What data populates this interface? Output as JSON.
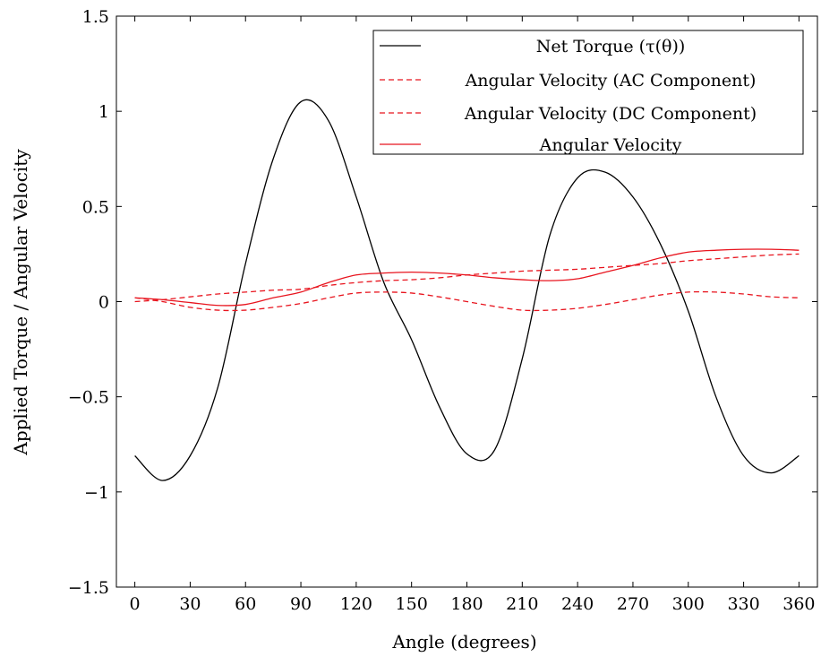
{
  "chart_data": {
    "type": "line",
    "xlabel": "Angle (degrees)",
    "ylabel": "Applied Torque / Angular Velocity",
    "xlim": [
      -10,
      370
    ],
    "ylim": [
      -1.5,
      1.5
    ],
    "xticks": [
      0,
      30,
      60,
      90,
      120,
      150,
      180,
      210,
      240,
      270,
      300,
      330,
      360
    ],
    "yticks": [
      1.5,
      1,
      0.5,
      0,
      -0.5,
      -1,
      -1.5
    ],
    "ytick_labels": [
      "1.5",
      "1",
      "0.5",
      "0",
      "−0.5",
      "−1",
      "−1.5"
    ],
    "grid": false,
    "legend_position": "top-right",
    "x": [
      0,
      15,
      30,
      45,
      60,
      75,
      90,
      105,
      120,
      135,
      150,
      165,
      180,
      195,
      210,
      225,
      240,
      255,
      270,
      285,
      300,
      315,
      330,
      345,
      360
    ],
    "series": [
      {
        "name": "Net Torque (τ(θ))",
        "color": "#000000",
        "dash": "solid",
        "values": [
          -0.81,
          -0.94,
          -0.81,
          -0.45,
          0.2,
          0.75,
          1.05,
          0.95,
          0.55,
          0.1,
          -0.2,
          -0.55,
          -0.8,
          -0.78,
          -0.3,
          0.35,
          0.65,
          0.68,
          0.55,
          0.3,
          -0.05,
          -0.5,
          -0.81,
          -0.9,
          -0.81
        ]
      },
      {
        "name": "Angular Velocity (AC Component)",
        "color": "#e8141e",
        "dash": "dashed",
        "values": [
          0.0,
          0.01,
          0.025,
          0.04,
          0.05,
          0.06,
          0.065,
          0.085,
          0.1,
          0.11,
          0.115,
          0.125,
          0.14,
          0.15,
          0.16,
          0.165,
          0.17,
          0.18,
          0.19,
          0.2,
          0.215,
          0.225,
          0.235,
          0.245,
          0.25
        ]
      },
      {
        "name": "Angular Velocity (DC Component)",
        "color": "#e8141e",
        "dash": "dashed",
        "values": [
          0.02,
          0.0,
          -0.03,
          -0.045,
          -0.045,
          -0.03,
          -0.01,
          0.02,
          0.045,
          0.05,
          0.045,
          0.025,
          0.0,
          -0.025,
          -0.045,
          -0.045,
          -0.035,
          -0.015,
          0.01,
          0.035,
          0.05,
          0.05,
          0.04,
          0.025,
          0.02
        ]
      },
      {
        "name": "Angular Velocity",
        "color": "#e8141e",
        "dash": "solid",
        "values": [
          0.02,
          0.01,
          -0.005,
          -0.02,
          -0.015,
          0.02,
          0.05,
          0.1,
          0.14,
          0.15,
          0.155,
          0.15,
          0.14,
          0.125,
          0.115,
          0.11,
          0.12,
          0.155,
          0.19,
          0.23,
          0.26,
          0.27,
          0.275,
          0.275,
          0.27
        ]
      }
    ]
  }
}
